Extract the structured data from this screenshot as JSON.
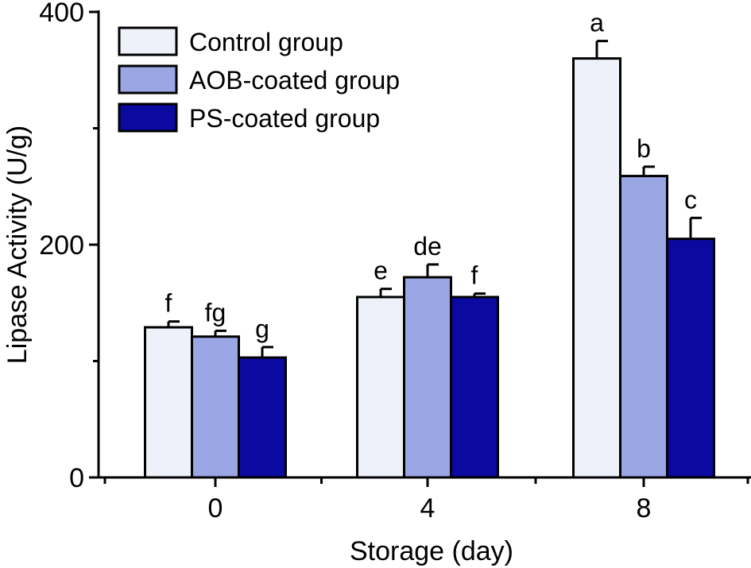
{
  "chart_data": {
    "type": "bar",
    "categories": [
      "0",
      "4",
      "8"
    ],
    "xlabel": "Storage (day)",
    "ylabel": "Lipase Activity (U/g)",
    "ylim": [
      0,
      400
    ],
    "yticks": [
      0,
      200,
      400
    ],
    "legend_position": "top-left",
    "grid": false,
    "series": [
      {
        "name": "Control group",
        "color": "#eef0fa",
        "values": [
          129,
          155,
          360
        ],
        "errors": [
          5,
          7,
          15
        ],
        "labels": [
          "f",
          "e",
          "a"
        ]
      },
      {
        "name": "AOB-coated group",
        "color": "#9ba6e4",
        "values": [
          121,
          172,
          259
        ],
        "errors": [
          5,
          11,
          8
        ],
        "labels": [
          "fg",
          "de",
          "b"
        ]
      },
      {
        "name": "PS-coated group",
        "color": "#0a0aa0",
        "values": [
          103,
          155,
          205
        ],
        "errors": [
          9,
          3,
          18
        ],
        "labels": [
          "g",
          "f",
          "c"
        ]
      }
    ]
  }
}
